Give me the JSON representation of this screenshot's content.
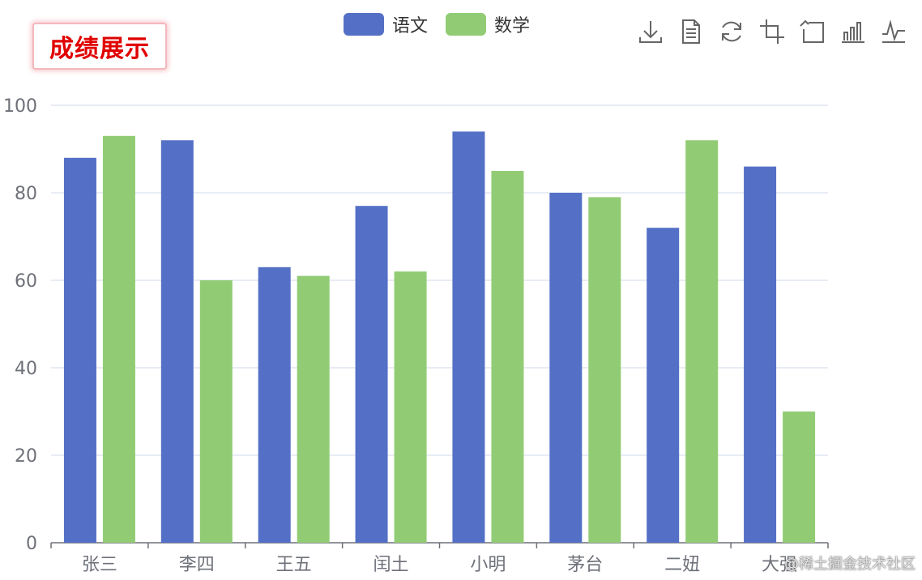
{
  "chart_data": {
    "type": "bar",
    "title": "成绩展示",
    "categories": [
      "张三",
      "李四",
      "王五",
      "闰土",
      "小明",
      "茅台",
      "二妞",
      "大强"
    ],
    "series": [
      {
        "name": "语文",
        "values": [
          88,
          92,
          63,
          77,
          94,
          80,
          72,
          86
        ],
        "color": "#5470c6"
      },
      {
        "name": "数学",
        "values": [
          93,
          60,
          61,
          62,
          85,
          79,
          92,
          30
        ],
        "color": "#91cc75"
      }
    ],
    "ylim": [
      0,
      100
    ],
    "yticks": [
      0,
      20,
      40,
      60,
      80,
      100
    ],
    "grid": true,
    "legend": "top-center"
  },
  "title_color": "#e00000",
  "toolbox": [
    "download-icon",
    "data-view-icon",
    "restore-icon",
    "zoom-icon",
    "zoom-reset-icon",
    "bar-switch-icon",
    "line-switch-icon"
  ],
  "watermark": "@稀土掘金技术社区"
}
